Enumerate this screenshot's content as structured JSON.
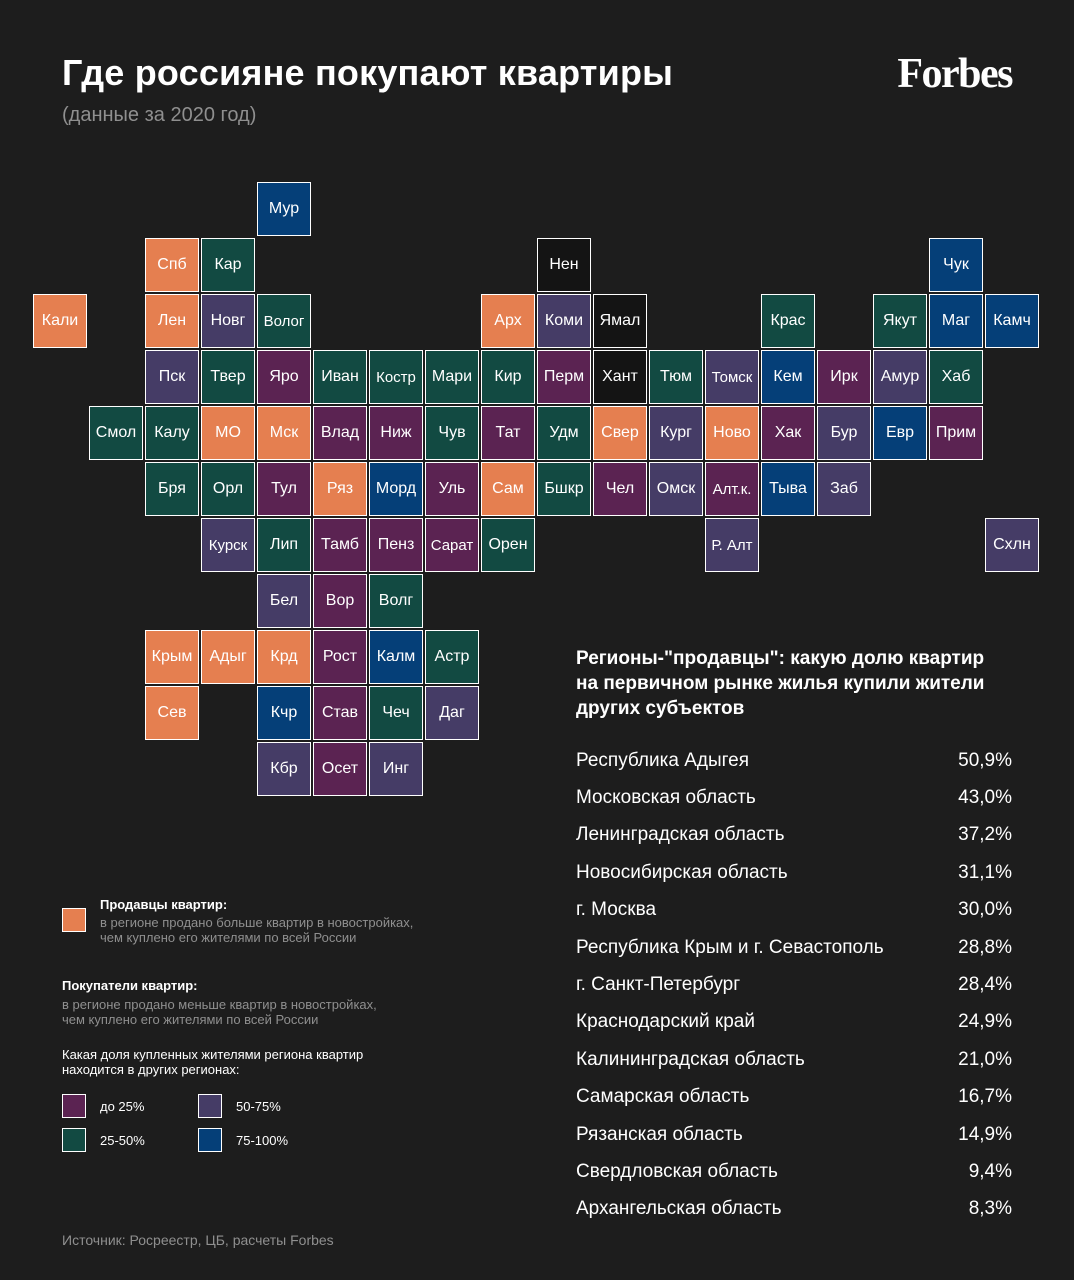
{
  "header": {
    "title": "Где россияне покупают квартиры",
    "subtitle": "(данные за 2020 год)",
    "brand": "Forbes"
  },
  "palette": {
    "sellers": "#e57f50",
    "lt25": "#5b2352",
    "p25_50": "#124a42",
    "p50_75": "#453c66",
    "p75_100": "#053f78",
    "no_data": "#141414"
  },
  "regions": [
    {
      "label": "Мур",
      "col": 5,
      "row": 0,
      "cat": "p75_100"
    },
    {
      "label": "Спб",
      "col": 3,
      "row": 1,
      "cat": "sellers"
    },
    {
      "label": "Кар",
      "col": 4,
      "row": 1,
      "cat": "p25_50"
    },
    {
      "label": "Нен",
      "col": 10,
      "row": 1,
      "cat": "no_data"
    },
    {
      "label": "Чук",
      "col": 17,
      "row": 1,
      "cat": "p75_100"
    },
    {
      "label": "Кали",
      "col": 1,
      "row": 2,
      "cat": "sellers"
    },
    {
      "label": "Лен",
      "col": 3,
      "row": 2,
      "cat": "sellers"
    },
    {
      "label": "Новг",
      "col": 4,
      "row": 2,
      "cat": "p50_75"
    },
    {
      "label": "Волог",
      "col": 5,
      "row": 2,
      "cat": "p25_50"
    },
    {
      "label": "Арх",
      "col": 9,
      "row": 2,
      "cat": "sellers"
    },
    {
      "label": "Коми",
      "col": 10,
      "row": 2,
      "cat": "p50_75"
    },
    {
      "label": "Ямал",
      "col": 11,
      "row": 2,
      "cat": "no_data"
    },
    {
      "label": "Крас",
      "col": 14,
      "row": 2,
      "cat": "p25_50"
    },
    {
      "label": "Якут",
      "col": 16,
      "row": 2,
      "cat": "p25_50"
    },
    {
      "label": "Маг",
      "col": 17,
      "row": 2,
      "cat": "p75_100"
    },
    {
      "label": "Камч",
      "col": 18,
      "row": 2,
      "cat": "p75_100"
    },
    {
      "label": "Пск",
      "col": 3,
      "row": 3,
      "cat": "p50_75"
    },
    {
      "label": "Твер",
      "col": 4,
      "row": 3,
      "cat": "p25_50"
    },
    {
      "label": "Яро",
      "col": 5,
      "row": 3,
      "cat": "lt25"
    },
    {
      "label": "Иван",
      "col": 6,
      "row": 3,
      "cat": "p25_50"
    },
    {
      "label": "Костр",
      "col": 7,
      "row": 3,
      "cat": "p25_50"
    },
    {
      "label": "Мари",
      "col": 8,
      "row": 3,
      "cat": "p25_50"
    },
    {
      "label": "Кир",
      "col": 9,
      "row": 3,
      "cat": "p25_50"
    },
    {
      "label": "Перм",
      "col": 10,
      "row": 3,
      "cat": "lt25"
    },
    {
      "label": "Хант",
      "col": 11,
      "row": 3,
      "cat": "no_data"
    },
    {
      "label": "Тюм",
      "col": 12,
      "row": 3,
      "cat": "p25_50"
    },
    {
      "label": "Томск",
      "col": 13,
      "row": 3,
      "cat": "p50_75"
    },
    {
      "label": "Кем",
      "col": 14,
      "row": 3,
      "cat": "p75_100"
    },
    {
      "label": "Ирк",
      "col": 15,
      "row": 3,
      "cat": "lt25"
    },
    {
      "label": "Амур",
      "col": 16,
      "row": 3,
      "cat": "p50_75"
    },
    {
      "label": "Хаб",
      "col": 17,
      "row": 3,
      "cat": "p25_50"
    },
    {
      "label": "Смол",
      "col": 2,
      "row": 4,
      "cat": "p25_50"
    },
    {
      "label": "Калу",
      "col": 3,
      "row": 4,
      "cat": "p25_50"
    },
    {
      "label": "МО",
      "col": 4,
      "row": 4,
      "cat": "sellers"
    },
    {
      "label": "Мск",
      "col": 5,
      "row": 4,
      "cat": "sellers"
    },
    {
      "label": "Влад",
      "col": 6,
      "row": 4,
      "cat": "lt25"
    },
    {
      "label": "Ниж",
      "col": 7,
      "row": 4,
      "cat": "lt25"
    },
    {
      "label": "Чув",
      "col": 8,
      "row": 4,
      "cat": "p25_50"
    },
    {
      "label": "Тат",
      "col": 9,
      "row": 4,
      "cat": "lt25"
    },
    {
      "label": "Удм",
      "col": 10,
      "row": 4,
      "cat": "p25_50"
    },
    {
      "label": "Свер",
      "col": 11,
      "row": 4,
      "cat": "sellers"
    },
    {
      "label": "Кург",
      "col": 12,
      "row": 4,
      "cat": "p50_75"
    },
    {
      "label": "Ново",
      "col": 13,
      "row": 4,
      "cat": "sellers"
    },
    {
      "label": "Хак",
      "col": 14,
      "row": 4,
      "cat": "lt25"
    },
    {
      "label": "Бур",
      "col": 15,
      "row": 4,
      "cat": "p50_75"
    },
    {
      "label": "Евр",
      "col": 16,
      "row": 4,
      "cat": "p75_100"
    },
    {
      "label": "Прим",
      "col": 17,
      "row": 4,
      "cat": "lt25"
    },
    {
      "label": "Бря",
      "col": 3,
      "row": 5,
      "cat": "p25_50"
    },
    {
      "label": "Орл",
      "col": 4,
      "row": 5,
      "cat": "p25_50"
    },
    {
      "label": "Тул",
      "col": 5,
      "row": 5,
      "cat": "lt25"
    },
    {
      "label": "Ряз",
      "col": 6,
      "row": 5,
      "cat": "sellers"
    },
    {
      "label": "Морд",
      "col": 7,
      "row": 5,
      "cat": "p75_100"
    },
    {
      "label": "Уль",
      "col": 8,
      "row": 5,
      "cat": "lt25"
    },
    {
      "label": "Сам",
      "col": 9,
      "row": 5,
      "cat": "sellers"
    },
    {
      "label": "Бшкр",
      "col": 10,
      "row": 5,
      "cat": "p25_50"
    },
    {
      "label": "Чел",
      "col": 11,
      "row": 5,
      "cat": "lt25"
    },
    {
      "label": "Омск",
      "col": 12,
      "row": 5,
      "cat": "p50_75"
    },
    {
      "label": "Алт.к.",
      "col": 13,
      "row": 5,
      "cat": "lt25"
    },
    {
      "label": "Тыва",
      "col": 14,
      "row": 5,
      "cat": "p75_100"
    },
    {
      "label": "Заб",
      "col": 15,
      "row": 5,
      "cat": "p50_75"
    },
    {
      "label": "Курск",
      "col": 4,
      "row": 6,
      "cat": "p50_75"
    },
    {
      "label": "Лип",
      "col": 5,
      "row": 6,
      "cat": "p25_50"
    },
    {
      "label": "Тамб",
      "col": 6,
      "row": 6,
      "cat": "lt25"
    },
    {
      "label": "Пенз",
      "col": 7,
      "row": 6,
      "cat": "lt25"
    },
    {
      "label": "Сарат",
      "col": 8,
      "row": 6,
      "cat": "lt25"
    },
    {
      "label": "Орен",
      "col": 9,
      "row": 6,
      "cat": "p25_50"
    },
    {
      "label": "Р. Алт",
      "col": 13,
      "row": 6,
      "cat": "p50_75"
    },
    {
      "label": "Схлн",
      "col": 18,
      "row": 6,
      "cat": "p50_75"
    },
    {
      "label": "Бел",
      "col": 5,
      "row": 7,
      "cat": "p50_75"
    },
    {
      "label": "Вор",
      "col": 6,
      "row": 7,
      "cat": "lt25"
    },
    {
      "label": "Волг",
      "col": 7,
      "row": 7,
      "cat": "p25_50"
    },
    {
      "label": "Крым",
      "col": 3,
      "row": 8,
      "cat": "sellers"
    },
    {
      "label": "Адыг",
      "col": 4,
      "row": 8,
      "cat": "sellers"
    },
    {
      "label": "Крд",
      "col": 5,
      "row": 8,
      "cat": "sellers"
    },
    {
      "label": "Рост",
      "col": 6,
      "row": 8,
      "cat": "lt25"
    },
    {
      "label": "Калм",
      "col": 7,
      "row": 8,
      "cat": "p75_100"
    },
    {
      "label": "Астр",
      "col": 8,
      "row": 8,
      "cat": "p25_50"
    },
    {
      "label": "Сев",
      "col": 3,
      "row": 9,
      "cat": "sellers"
    },
    {
      "label": "Кчр",
      "col": 5,
      "row": 9,
      "cat": "p75_100"
    },
    {
      "label": "Став",
      "col": 6,
      "row": 9,
      "cat": "lt25"
    },
    {
      "label": "Чеч",
      "col": 7,
      "row": 9,
      "cat": "p25_50"
    },
    {
      "label": "Даг",
      "col": 8,
      "row": 9,
      "cat": "p50_75"
    },
    {
      "label": "Кбр",
      "col": 5,
      "row": 10,
      "cat": "p50_75"
    },
    {
      "label": "Осет",
      "col": 6,
      "row": 10,
      "cat": "lt25"
    },
    {
      "label": "Инг",
      "col": 7,
      "row": 10,
      "cat": "p50_75"
    }
  ],
  "legend": {
    "sellers_title": "Продавцы квартир:",
    "sellers_line1": "в регионе продано больше квартир в новостройках,",
    "sellers_line2": "чем куплено его жителями по всей России",
    "buyers_title": "Покупатели квартир:",
    "buyers_line1": "в регионе продано меньше квартир в новостройках,",
    "buyers_line2": "чем куплено его жителями по всей России",
    "share_line1": "Какая доля купленных жителями региона квартир",
    "share_line2": "находится в других регионах:",
    "lt25": "до 25%",
    "p25_50": "25-50%",
    "p50_75": "50-75%",
    "p75_100": "75-100%"
  },
  "sellers_panel": {
    "title_line1": "Регионы-\"продавцы\": какую долю квартир",
    "title_line2": "на первичном рынке жилья купили жители",
    "title_line3": "других субъектов",
    "rows": [
      {
        "region": "Республика Адыгея",
        "value": "50,9%"
      },
      {
        "region": "Московская область",
        "value": "43,0%"
      },
      {
        "region": "Ленинградская область",
        "value": "37,2%"
      },
      {
        "region": "Новосибирская область",
        "value": "31,1%"
      },
      {
        "region": "г. Москва",
        "value": "30,0%"
      },
      {
        "region": "Республика Крым и г. Севастополь",
        "value": "28,8%"
      },
      {
        "region": "г. Санкт-Петербург",
        "value": "28,4%"
      },
      {
        "region": "Краснодарский край",
        "value": "24,9%"
      },
      {
        "region": "Калининградская область",
        "value": "21,0%"
      },
      {
        "region": "Самарская область",
        "value": "16,7%"
      },
      {
        "region": "Рязанская область",
        "value": "14,9%"
      },
      {
        "region": "Свердловская область",
        "value": "9,4%"
      },
      {
        "region": "Архангельская область",
        "value": "8,3%"
      }
    ]
  },
  "footer": {
    "source": "Источник: Росреестр, ЦБ, расчеты Forbes"
  }
}
